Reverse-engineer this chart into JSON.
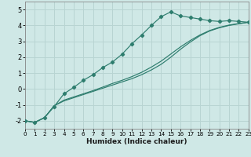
{
  "xlabel": "Humidex (Indice chaleur)",
  "ylabel": "",
  "background_color": "#cfe8e6",
  "grid_color": "#b8d4d2",
  "line_color": "#2e7d6e",
  "x": [
    0,
    1,
    2,
    3,
    4,
    5,
    6,
    7,
    8,
    9,
    10,
    11,
    12,
    13,
    14,
    15,
    16,
    17,
    18,
    19,
    20,
    21,
    22,
    23
  ],
  "line1": [
    -2.0,
    -2.1,
    -1.8,
    -1.1,
    -0.3,
    0.1,
    0.55,
    0.9,
    1.35,
    1.7,
    2.2,
    2.85,
    3.4,
    4.0,
    4.55,
    4.85,
    4.6,
    4.5,
    4.4,
    4.3,
    4.25,
    4.3,
    4.25,
    4.2
  ],
  "line2": [
    -2.0,
    -2.1,
    -1.8,
    -1.05,
    -0.75,
    -0.55,
    -0.35,
    -0.15,
    0.05,
    0.25,
    0.45,
    0.65,
    0.9,
    1.2,
    1.55,
    2.0,
    2.5,
    2.95,
    3.35,
    3.65,
    3.85,
    4.0,
    4.1,
    4.2
  ],
  "line3": [
    -2.0,
    -2.1,
    -1.8,
    -1.05,
    -0.7,
    -0.5,
    -0.3,
    -0.1,
    0.12,
    0.35,
    0.55,
    0.78,
    1.05,
    1.38,
    1.75,
    2.2,
    2.65,
    3.05,
    3.4,
    3.68,
    3.88,
    4.02,
    4.12,
    4.2
  ],
  "xlim": [
    0,
    23
  ],
  "ylim": [
    -2.5,
    5.5
  ],
  "yticks": [
    -2,
    -1,
    0,
    1,
    2,
    3,
    4,
    5
  ],
  "xticks": [
    0,
    1,
    2,
    3,
    4,
    5,
    6,
    7,
    8,
    9,
    10,
    11,
    12,
    13,
    14,
    15,
    16,
    17,
    18,
    19,
    20,
    21,
    22,
    23
  ]
}
